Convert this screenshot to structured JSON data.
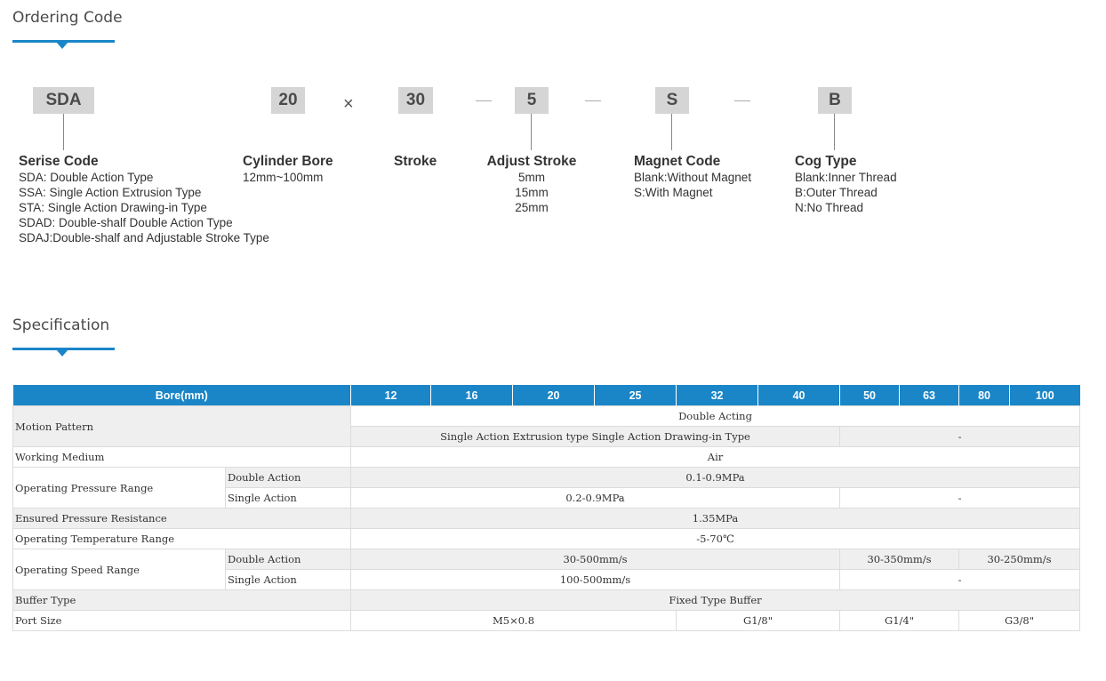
{
  "ordering": {
    "title": "Ordering Code",
    "codes": [
      "SDA",
      "20",
      "30",
      "5",
      "S",
      "B"
    ],
    "times_symbol": "×",
    "groups": [
      {
        "heading": "Serise Code",
        "lines": [
          "SDA: Double Action Type",
          "SSA: Single Action Extrusion Type",
          "STA: Single Action Drawing-in Type",
          "SDAD: Double-shalf Double Action Type",
          "SDAJ:Double-shalf and  Adjustable Stroke Type"
        ]
      },
      {
        "heading": "Cylinder Bore",
        "lines": [
          "12mm~100mm"
        ]
      },
      {
        "heading": "Stroke",
        "lines": []
      },
      {
        "heading": "Adjust Stroke",
        "lines": [
          "5mm",
          "15mm",
          "25mm"
        ]
      },
      {
        "heading": "Magnet Code",
        "lines": [
          "Blank:Without Magnet",
          "S:With Magnet"
        ]
      },
      {
        "heading": "Cog Type",
        "lines": [
          "Blank:Inner Thread",
          "B:Outer Thread",
          "N:No Thread"
        ]
      }
    ]
  },
  "specification": {
    "title": "Specification",
    "header_label": "Bore(mm)",
    "bores": [
      "12",
      "16",
      "20",
      "25",
      "32",
      "40",
      "50",
      "63",
      "80",
      "100"
    ],
    "rows": {
      "motion_pattern": {
        "label": "Motion Pattern",
        "double": "Double Acting",
        "single": "Single Action Extrusion type Single Action Drawing-in Type",
        "single_na": "-"
      },
      "working_medium": {
        "label": "Working Medium",
        "value": "Air"
      },
      "pressure_range": {
        "label": "Operating Pressure Range",
        "double_label": "Double Action",
        "double_value": "0.1-0.9MPa",
        "single_label": "Single Action",
        "single_value": "0.2-0.9MPa",
        "single_na": "-"
      },
      "pressure_resistance": {
        "label": "Ensured Pressure Resistance",
        "value": "1.35MPa"
      },
      "temperature_range": {
        "label": "Operating Temperature Range",
        "value": "-5-70℃"
      },
      "speed_range": {
        "label": "Operating Speed Range",
        "double_label": "Double Action",
        "double_value_a": "30-500mm/s",
        "double_value_b": "30-350mm/s",
        "double_value_c": "30-250mm/s",
        "single_label": "Single Action",
        "single_value": "100-500mm/s",
        "single_na": "-"
      },
      "buffer_type": {
        "label": "Buffer Type",
        "value": "Fixed Type Buffer"
      },
      "port_size": {
        "label": "Port Size",
        "values": [
          "M5×0.8",
          "G1/8\"",
          "G1/4\"",
          "G3/8\""
        ]
      }
    }
  }
}
